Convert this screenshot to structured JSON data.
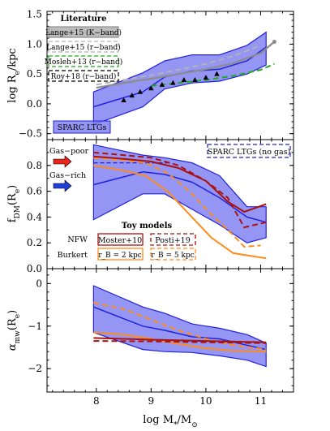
{
  "chart_data": [
    {
      "type": "line",
      "panel": "top",
      "ylabel": "log R_e/kpc",
      "xlim": [
        7.1,
        11.6
      ],
      "ylim": [
        -0.6,
        1.55
      ],
      "yticks": [
        "−0.5",
        "0.0",
        "0.5",
        "1.0",
        "1.5"
      ],
      "band": {
        "name": "SPARC LTGs",
        "x": [
          7.95,
          8.85,
          9.25,
          9.75,
          10.25,
          10.75,
          11.1
        ],
        "upper": [
          0.2,
          0.52,
          0.72,
          0.82,
          0.82,
          0.98,
          1.2
        ],
        "lower": [
          -0.35,
          -0.05,
          0.25,
          0.35,
          0.38,
          0.5,
          0.65
        ],
        "median": [
          -0.05,
          0.2,
          0.45,
          0.55,
          0.58,
          0.72,
          0.95
        ]
      },
      "series": [
        {
          "name": "Lange+15 (K-band)",
          "x": [
            8.0,
            8.5,
            9.0,
            9.5,
            10.0,
            10.5,
            11.0,
            11.25
          ],
          "y": [
            0.27,
            0.35,
            0.42,
            0.5,
            0.58,
            0.68,
            0.85,
            1.04
          ]
        },
        {
          "name": "Lange+15 (r-band)",
          "x": [
            8.0,
            8.5,
            9.0,
            9.5,
            10.0,
            10.5,
            11.0
          ],
          "y": [
            0.32,
            0.4,
            0.48,
            0.57,
            0.67,
            0.8,
            0.98
          ]
        },
        {
          "name": "Mosleh+13 (r-band)",
          "x": [
            9.0,
            9.5,
            10.0,
            10.5,
            11.0,
            11.25
          ],
          "y": [
            0.3,
            0.35,
            0.4,
            0.47,
            0.57,
            0.67
          ]
        },
        {
          "name": "Roy+18 (r-band)",
          "x": [
            8.5,
            8.65,
            8.8,
            9.0,
            9.2,
            9.4,
            9.6,
            9.8,
            10.0,
            10.2
          ],
          "y": [
            0.06,
            0.14,
            0.2,
            0.26,
            0.32,
            0.35,
            0.4,
            0.4,
            0.44,
            0.5
          ]
        }
      ],
      "legend_title": "Literature",
      "legend_placement": "top-left"
    },
    {
      "type": "line",
      "panel": "middle",
      "ylabel": "f_DM(R_e)",
      "xlim": [
        7.1,
        11.6
      ],
      "ylim": [
        0.0,
        1.0
      ],
      "yticks": [
        "0.0",
        "0.2",
        "0.4",
        "0.6",
        "0.8"
      ],
      "band": {
        "name": "SPARC LTGs (no gas)",
        "x": [
          7.95,
          8.85,
          9.25,
          9.75,
          10.25,
          10.75,
          11.1
        ],
        "upper": [
          0.96,
          0.88,
          0.86,
          0.82,
          0.72,
          0.48,
          0.48
        ],
        "lower": [
          0.38,
          0.58,
          0.58,
          0.46,
          0.34,
          0.2,
          0.24
        ],
        "median": [
          0.65,
          0.75,
          0.73,
          0.67,
          0.55,
          0.4,
          0.36
        ],
        "gas_included_median_y": 0.82
      },
      "annotations": [
        "Gas−poor",
        "Gas−rich"
      ],
      "series": [
        {
          "name": "Moster+10",
          "model": "NFW",
          "x": [
            7.95,
            8.5,
            9.0,
            9.5,
            10.0,
            10.4,
            10.7,
            11.1
          ],
          "y": [
            0.87,
            0.85,
            0.83,
            0.78,
            0.68,
            0.52,
            0.44,
            0.5
          ]
        },
        {
          "name": "Posti+19",
          "model": "NFW",
          "x": [
            7.95,
            8.5,
            9.0,
            9.5,
            10.0,
            10.4,
            10.7,
            11.1
          ],
          "y": [
            0.9,
            0.88,
            0.86,
            0.8,
            0.68,
            0.55,
            0.32,
            0.36
          ]
        },
        {
          "name": "rB = 2 kpc",
          "model": "Burkert",
          "x": [
            7.95,
            8.5,
            8.9,
            9.3,
            9.7,
            10.1,
            10.5,
            11.1
          ],
          "y": [
            0.8,
            0.76,
            0.72,
            0.6,
            0.42,
            0.24,
            0.12,
            0.08
          ]
        },
        {
          "name": "rB = 5 kpc",
          "model": "Burkert",
          "x": [
            7.95,
            8.5,
            8.9,
            9.3,
            9.7,
            10.1,
            10.5,
            10.7,
            11.0
          ],
          "y": [
            0.86,
            0.84,
            0.82,
            0.74,
            0.6,
            0.42,
            0.26,
            0.17,
            0.18
          ]
        }
      ],
      "legend_title": "Toy models",
      "legend_rows": [
        "NFW",
        "Burkert"
      ],
      "legend_placement": "bottom-center"
    },
    {
      "type": "line",
      "panel": "bottom",
      "ylabel": "α_mw(R_e)",
      "xlabel": "log M_*/M_⊙",
      "xlim": [
        7.1,
        11.6
      ],
      "ylim": [
        -2.55,
        0.35
      ],
      "xticks": [
        "8",
        "9",
        "10",
        "11"
      ],
      "yticks": [
        "−2",
        "−1",
        "0"
      ],
      "band": {
        "x": [
          7.95,
          8.85,
          9.25,
          9.75,
          10.25,
          10.75,
          11.1
        ],
        "upper": [
          -0.05,
          -0.55,
          -0.7,
          -0.95,
          -1.05,
          -1.2,
          -1.4
        ],
        "lower": [
          -1.15,
          -1.55,
          -1.6,
          -1.62,
          -1.7,
          -1.8,
          -1.95
        ],
        "median": [
          -0.55,
          -1.0,
          -1.1,
          -1.25,
          -1.3,
          -1.45,
          -1.55
        ]
      },
      "series": [
        {
          "name": "Moster+10",
          "x": [
            7.95,
            9.0,
            10.0,
            11.1
          ],
          "y": [
            -1.28,
            -1.32,
            -1.35,
            -1.38
          ]
        },
        {
          "name": "Posti+19",
          "x": [
            7.95,
            9.0,
            10.0,
            11.1
          ],
          "y": [
            -1.35,
            -1.36,
            -1.38,
            -1.4
          ]
        },
        {
          "name": "rB = 2 kpc",
          "x": [
            7.95,
            8.5,
            9.0,
            9.5,
            10.0,
            10.5,
            11.1
          ],
          "y": [
            -1.15,
            -1.2,
            -1.3,
            -1.42,
            -1.52,
            -1.58,
            -1.6
          ]
        },
        {
          "name": "rB = 5 kpc",
          "x": [
            7.95,
            8.5,
            9.0,
            9.5,
            10.0,
            10.5,
            11.1
          ],
          "y": [
            -0.45,
            -0.6,
            -0.85,
            -1.1,
            -1.3,
            -1.45,
            -1.55
          ]
        }
      ]
    }
  ],
  "colors": {
    "band_fill": "#7b7bf0",
    "band_edge": "#2222dd",
    "lange_k": "#8c8c8c",
    "lange_r": "#b3b3b3",
    "mosleh": "#22aa22",
    "roy": "#000000",
    "moster": "#aa1111",
    "posti": "#aa1111",
    "burkert2": "#ff8c1a",
    "burkert5": "#ff8c1a",
    "arrow_gas_poor": "#e8261a",
    "arrow_gas_rich": "#1f3fd6"
  },
  "legend_labels": {
    "lit_title": "Literature",
    "lange_k": "Lange+15 (K−band)",
    "lange_r": "Lange+15 (r−band)",
    "mosleh": "Mosleh+13 (r−band)",
    "roy": "Roy+18 (r−band)",
    "sparc": "SPARC LTGs",
    "sparc_nogas": "SPARC LTGs (no gas)",
    "gas_poor": "Gas−poor",
    "gas_rich": "Gas−rich",
    "toy_title": "Toy models",
    "nfw": "NFW",
    "burkert": "Burkert",
    "moster": "Moster+10",
    "posti": "Posti+19",
    "rb2": "r_B = 2 kpc",
    "rb5": "r_B = 5 kpc"
  }
}
